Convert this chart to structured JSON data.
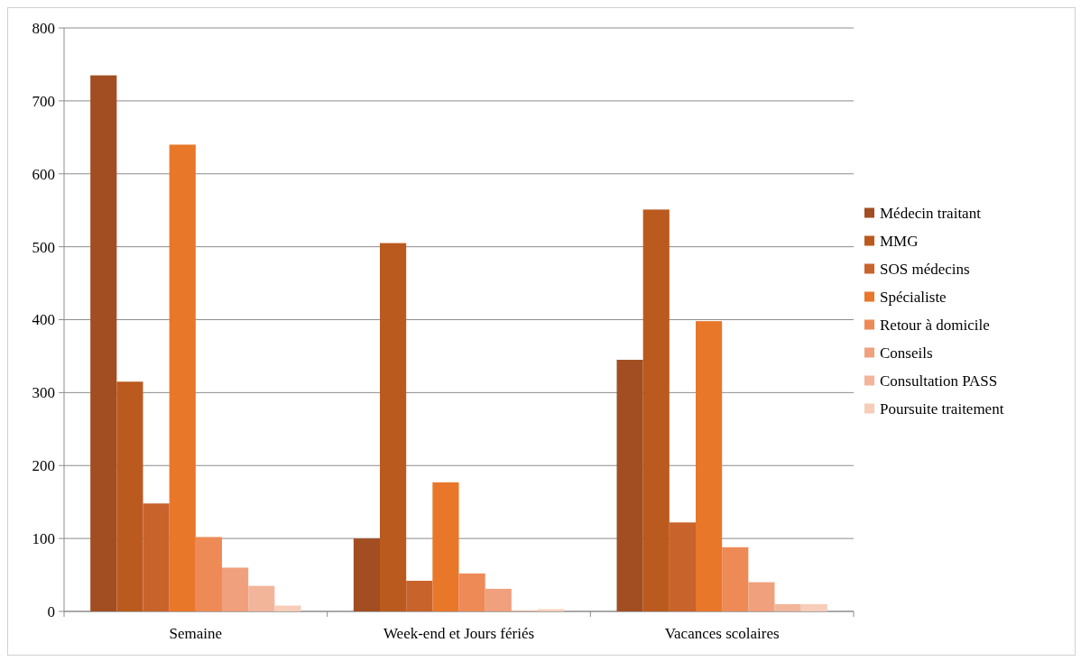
{
  "chart_data": {
    "type": "bar",
    "categories": [
      "Semaine",
      "Week-end et Jours fériés",
      "Vacances scolaires"
    ],
    "series": [
      {
        "name": "Médecin traitant",
        "color": "#a24e22",
        "values": [
          735,
          100,
          345
        ]
      },
      {
        "name": "MMG",
        "color": "#bb5a1e",
        "values": [
          315,
          505,
          551
        ]
      },
      {
        "name": "SOS médecins",
        "color": "#c9632c",
        "values": [
          148,
          42,
          122
        ]
      },
      {
        "name": "Spécialiste",
        "color": "#e8772a",
        "values": [
          640,
          177,
          398
        ]
      },
      {
        "name": "Retour à domicile",
        "color": "#ee8a56",
        "values": [
          102,
          52,
          88
        ]
      },
      {
        "name": "Conseils",
        "color": "#f0a07c",
        "values": [
          60,
          31,
          40
        ]
      },
      {
        "name": "Consultation PASS",
        "color": "#f3b59a",
        "values": [
          35,
          1,
          10
        ]
      },
      {
        "name": "Poursuite traitement",
        "color": "#f7cdb9",
        "values": [
          8,
          3,
          10
        ]
      }
    ],
    "ylim": [
      0,
      800
    ],
    "yticks": [
      0,
      100,
      200,
      300,
      400,
      500,
      600,
      700,
      800
    ],
    "grid": "y",
    "legend": "right"
  }
}
